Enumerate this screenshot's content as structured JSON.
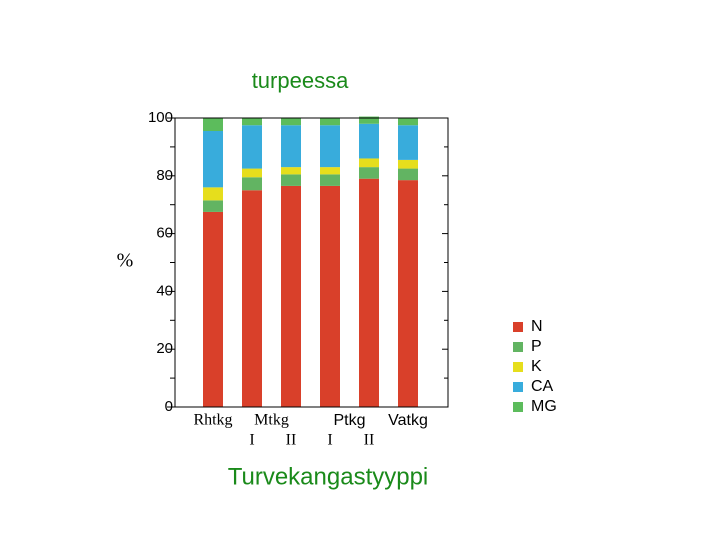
{
  "chart_data": {
    "type": "stacked_bar",
    "title": "turpeessa",
    "y_label": "%",
    "x_label": "Turvekangastyyppi",
    "categories": [
      "Rhtkg",
      "I",
      "II",
      "I",
      "II",
      "Vatkg"
    ],
    "category_groups": [
      {
        "label": "Mtkg",
        "start": 1,
        "end": 2
      },
      {
        "label": "Ptkg",
        "start": 3,
        "end": 4
      }
    ],
    "series": [
      {
        "name": "N",
        "color": "#d9402a",
        "values": [
          67.5,
          75,
          76.5,
          76.5,
          79,
          78.5
        ]
      },
      {
        "name": "P",
        "color": "#62b462",
        "values": [
          4,
          4.5,
          4,
          4,
          4,
          4
        ]
      },
      {
        "name": "K",
        "color": "#e6de1c",
        "values": [
          4.5,
          3,
          2.5,
          2.5,
          3,
          3
        ]
      },
      {
        "name": "CA",
        "color": "#38acdc",
        "values": [
          19.5,
          15,
          14.5,
          14.5,
          12,
          12
        ]
      },
      {
        "name": "MG",
        "color": "#5cbc5c",
        "values": [
          4.5,
          2.5,
          2.5,
          2.5,
          2.5,
          2.5
        ]
      }
    ],
    "ylim": [
      0,
      100
    ],
    "yticks": [
      0,
      20,
      40,
      60,
      80,
      100
    ],
    "grid": false,
    "legend": "right"
  }
}
